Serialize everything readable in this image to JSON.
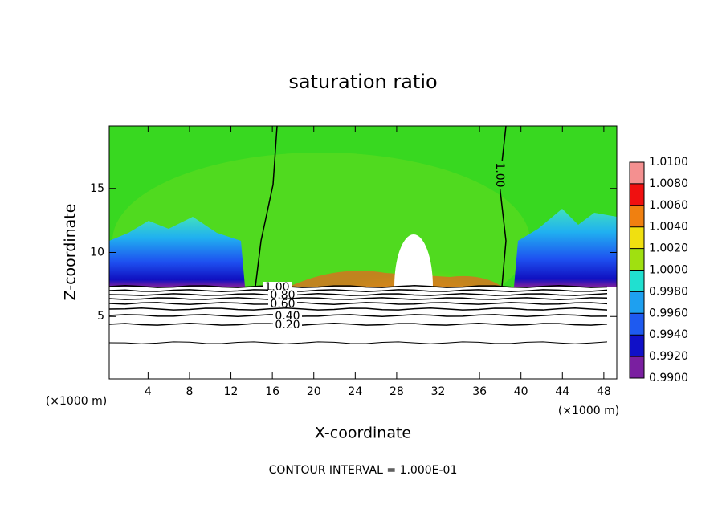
{
  "chart_data": {
    "type": "contour",
    "title": "saturation ratio",
    "x_label": "X-coordinate",
    "y_label": "Z-coordinate",
    "x_unit": "(×1000 m)",
    "footer": "CONTOUR INTERVAL = 1.000E-01",
    "xlim": [
      0.25,
      49.25
    ],
    "xticks": [
      4,
      8,
      12,
      16,
      20,
      24,
      28,
      32,
      36,
      40,
      44,
      48
    ],
    "ylim": [
      0.125,
      19.875
    ],
    "yticks": [
      5,
      10,
      15
    ],
    "contour_levels": [
      {
        "value": 1.0,
        "label": "1.00"
      },
      {
        "value": 0.8,
        "label": "0.80"
      },
      {
        "value": 0.6,
        "label": "0.60"
      },
      {
        "value": 0.4,
        "label": "0.40"
      },
      {
        "value": 0.2,
        "label": "0.20"
      }
    ],
    "colorbar": {
      "lim": [
        0.99,
        1.01
      ],
      "ticks": [
        {
          "value": 0.99,
          "label": "0.9900"
        },
        {
          "value": 0.992,
          "label": "0.9920"
        },
        {
          "value": 0.994,
          "label": "0.9940"
        },
        {
          "value": 0.996,
          "label": "0.9960"
        },
        {
          "value": 0.998,
          "label": "0.9980"
        },
        {
          "value": 1.0,
          "label": "1.0000"
        },
        {
          "value": 1.002,
          "label": "1.0020"
        },
        {
          "value": 1.004,
          "label": "1.0040"
        },
        {
          "value": 1.006,
          "label": "1.0060"
        },
        {
          "value": 1.008,
          "label": "1.0080"
        },
        {
          "value": 1.01,
          "label": "1.0100"
        }
      ],
      "colors": [
        "#7a1fa0",
        "#1010c8",
        "#1e5af0",
        "#1ea0f0",
        "#20e0d0",
        "#30d020",
        "#a0e010",
        "#f0e010",
        "#f08010",
        "#f01010",
        "#f49090"
      ]
    }
  }
}
